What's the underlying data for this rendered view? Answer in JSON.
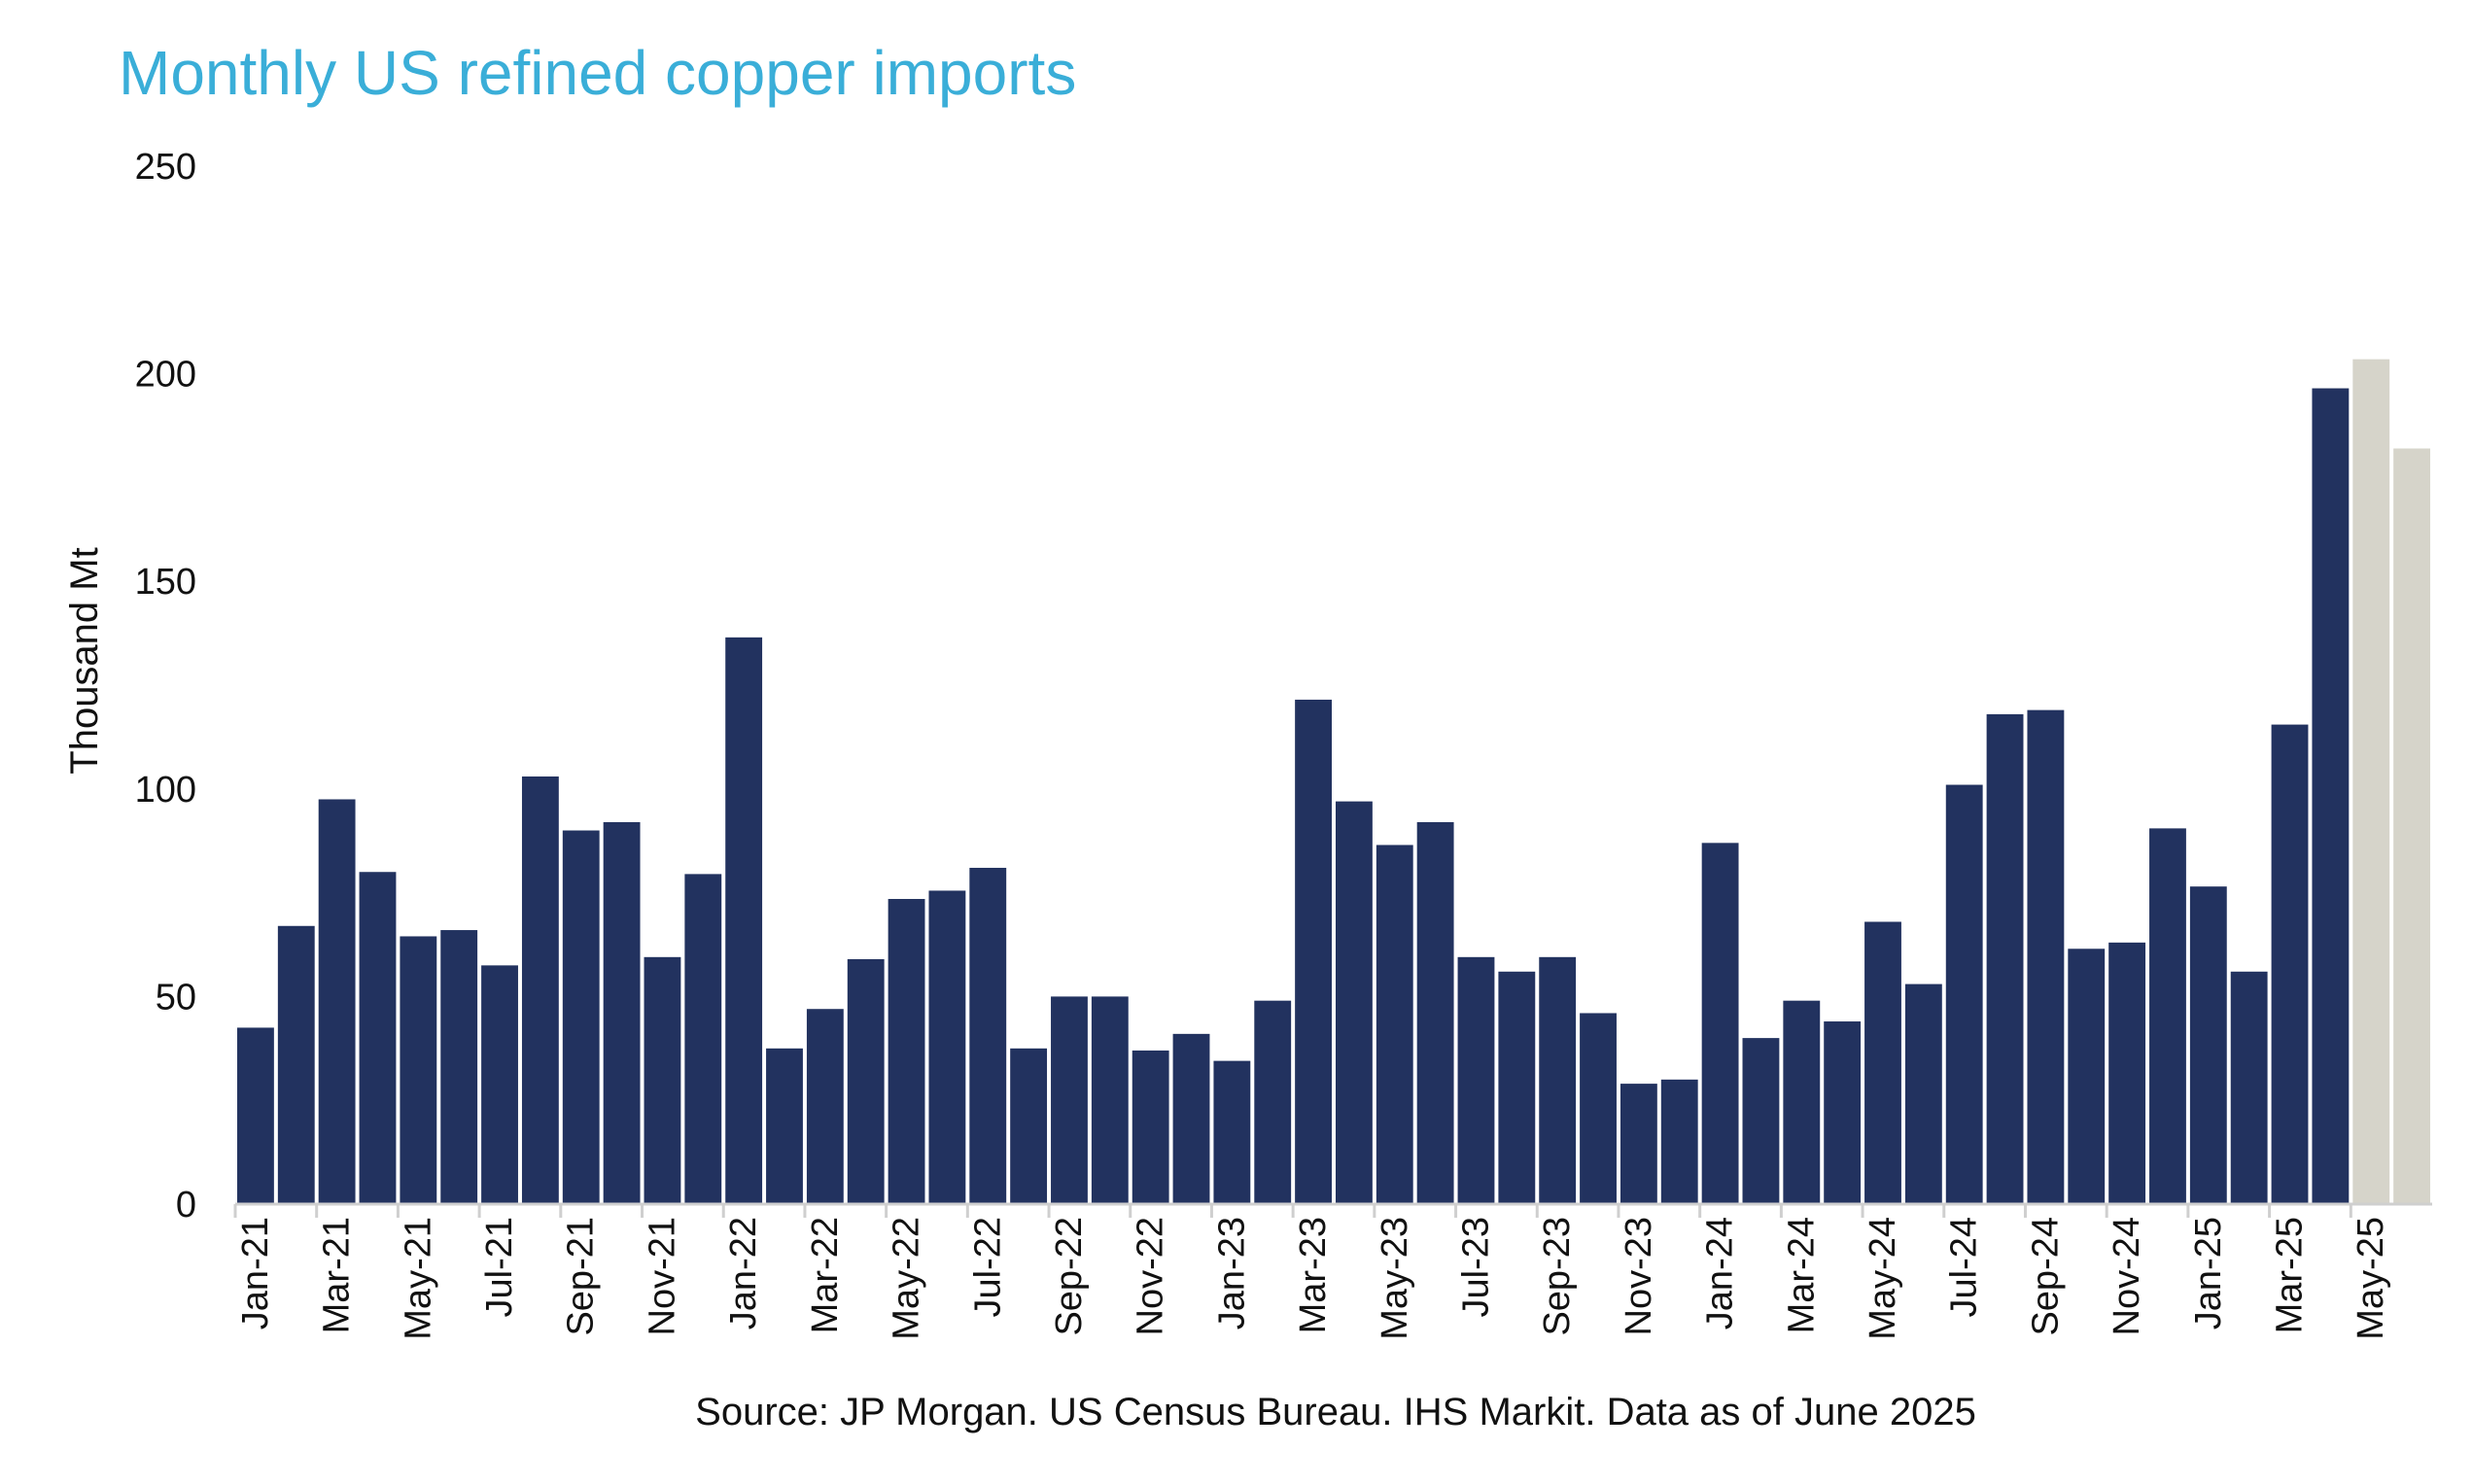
{
  "chart_data": {
    "type": "bar",
    "title": "Monthly US refined copper imports",
    "xlabel": "",
    "ylabel": "Thousand Mt",
    "ylim": [
      0,
      250
    ],
    "yticks": [
      0,
      50,
      100,
      150,
      200,
      250
    ],
    "grid": false,
    "source": "Source: JP Morgan. US Census Bureau. IHS Markit. Data as of June 2025",
    "colors": {
      "actual": "#22325f",
      "highlight": "#d6d4ca",
      "title": "#3aaed8"
    },
    "categories": [
      "Jan-21",
      "Feb-21",
      "Mar-21",
      "Apr-21",
      "May-21",
      "Jun-21",
      "Jul-21",
      "Aug-21",
      "Sep-21",
      "Oct-21",
      "Nov-21",
      "Dec-21",
      "Jan-22",
      "Feb-22",
      "Mar-22",
      "Apr-22",
      "May-22",
      "Jun-22",
      "Jul-22",
      "Aug-22",
      "Sep-22",
      "Oct-22",
      "Nov-22",
      "Dec-22",
      "Jan-23",
      "Feb-23",
      "Mar-23",
      "Apr-23",
      "May-23",
      "Jun-23",
      "Jul-23",
      "Aug-23",
      "Sep-23",
      "Oct-23",
      "Nov-23",
      "Dec-23",
      "Jan-24",
      "Feb-24",
      "Mar-24",
      "Apr-24",
      "May-24",
      "Jun-24",
      "Jul-24",
      "Aug-24",
      "Sep-24",
      "Oct-24",
      "Nov-24",
      "Dec-24",
      "Jan-25",
      "Feb-25",
      "Mar-25",
      "Apr-25",
      "May-25",
      "Jun-25"
    ],
    "values": [
      42.5,
      67,
      97.5,
      80,
      64.5,
      66,
      57.5,
      103,
      90,
      92,
      59.5,
      79.5,
      136.5,
      37.5,
      47,
      59,
      73.5,
      75.5,
      81,
      37.5,
      50,
      50,
      37,
      41,
      34.5,
      49,
      121.5,
      97,
      86.5,
      92,
      59.5,
      56,
      59.5,
      46,
      29,
      30,
      87,
      40,
      49,
      44,
      68,
      53,
      101,
      118,
      119,
      61.5,
      63,
      90.5,
      76.5,
      56,
      115.5,
      196.5,
      203.5,
      182
    ],
    "highlight": [
      "actual",
      "actual",
      "actual",
      "actual",
      "actual",
      "actual",
      "actual",
      "actual",
      "actual",
      "actual",
      "actual",
      "actual",
      "actual",
      "actual",
      "actual",
      "actual",
      "actual",
      "actual",
      "actual",
      "actual",
      "actual",
      "actual",
      "actual",
      "actual",
      "actual",
      "actual",
      "actual",
      "actual",
      "actual",
      "actual",
      "actual",
      "actual",
      "actual",
      "actual",
      "actual",
      "actual",
      "actual",
      "actual",
      "actual",
      "actual",
      "actual",
      "actual",
      "actual",
      "actual",
      "actual",
      "actual",
      "actual",
      "actual",
      "actual",
      "actual",
      "actual",
      "actual",
      "highlight",
      "highlight"
    ],
    "labeled_categories": [
      "Jan-21",
      "Mar-21",
      "May-21",
      "Jul-21",
      "Sep-21",
      "Nov-21",
      "Jan-22",
      "Mar-22",
      "May-22",
      "Jul-22",
      "Sep-22",
      "Nov-22",
      "Jan-23",
      "Mar-23",
      "May-23",
      "Jul-23",
      "Sep-23",
      "Nov-23",
      "Jan-24",
      "Mar-24",
      "May-24",
      "Jul-24",
      "Sep-24",
      "Nov-24",
      "Jan-25",
      "Mar-25",
      "May-25"
    ]
  }
}
